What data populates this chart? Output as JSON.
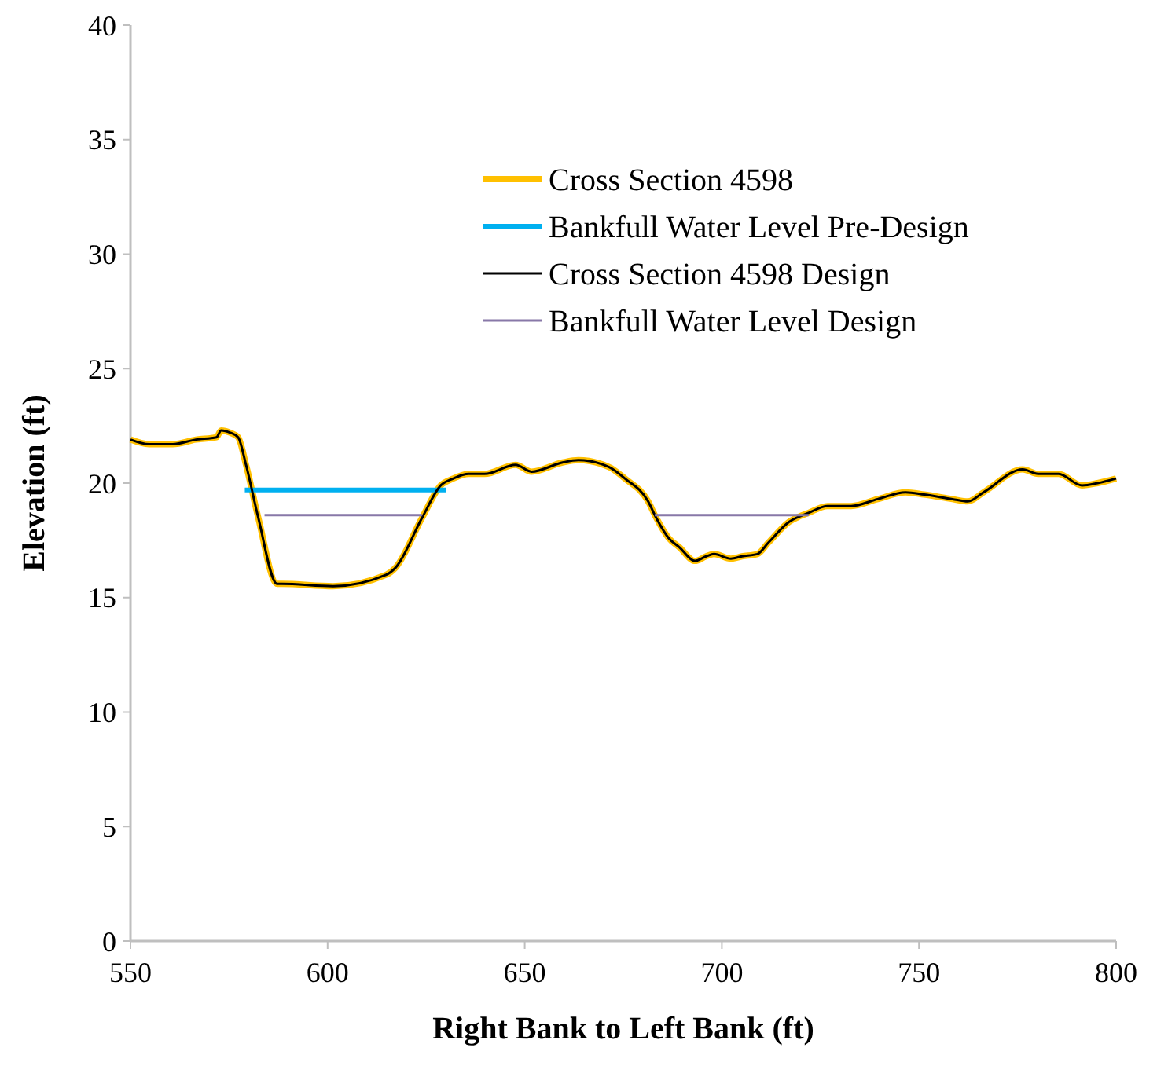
{
  "chart_data": {
    "type": "line",
    "xlabel": "Right Bank to Left Bank (ft)",
    "ylabel": "Elevation (ft)",
    "xlim": [
      550,
      800
    ],
    "xticks": [
      550,
      600,
      650,
      700,
      750,
      800
    ],
    "ylim": [
      0,
      40
    ],
    "yticks": [
      0,
      5,
      10,
      15,
      20,
      25,
      30,
      35,
      40
    ],
    "grid": false,
    "legend": "top right",
    "marker": "none",
    "line_style": "solid",
    "series": [
      {
        "name": "Cross Section 4598",
        "color": "#ffc000",
        "x": [
          550,
          554.7,
          560.7,
          566.6,
          571.8,
          573,
          575.3,
          577.3,
          579.3,
          582.4,
          587.2,
          588.4,
          601.4,
          614.9,
          617.2,
          624,
          628.7,
          631.9,
          635.8,
          639.8,
          647.7,
          651.7,
          659.6,
          663.6,
          671.4,
          675.4,
          681.3,
          683.3,
          686.5,
          689.2,
          693.2,
          696,
          698,
          702.3,
          705.1,
          709,
          711.8,
          717,
          722,
          726.8,
          732.8,
          739.5,
          746.6,
          751.3,
          758.5,
          762.4,
          766.4,
          776.3,
          780.2,
          785.4,
          791.3,
          795.3,
          800
        ],
        "values": [
          21.9,
          21.7,
          21.7,
          21.9,
          22.0,
          22.3,
          22.2,
          22.0,
          20.8,
          18.5,
          15.6,
          15.6,
          15.5,
          16.0,
          16.3,
          18.5,
          19.9,
          20.2,
          20.4,
          20.4,
          20.8,
          20.5,
          20.9,
          21.0,
          20.7,
          20.2,
          19.2,
          18.5,
          17.6,
          17.2,
          16.6,
          16.8,
          16.9,
          16.7,
          16.8,
          16.9,
          17.4,
          18.3,
          18.7,
          19.0,
          19.0,
          19.3,
          19.6,
          19.5,
          19.3,
          19.2,
          19.6,
          20.6,
          20.4,
          20.4,
          19.9,
          20.0,
          20.2
        ]
      },
      {
        "name": "Bankfull Water Level Pre-Design",
        "color": "#00b0f0",
        "x": [
          579,
          630
        ],
        "values": [
          19.7,
          19.7
        ]
      },
      {
        "name": "Cross Section 4598 Design",
        "color": "#000000",
        "x": [
          550,
          554.7,
          560.7,
          566.6,
          571.8,
          573,
          575.3,
          577.3,
          579.3,
          582.4,
          587.2,
          588.4,
          601.4,
          614.9,
          617.2,
          624,
          628.7,
          631.9,
          635.8,
          639.8,
          647.7,
          651.7,
          659.6,
          663.6,
          671.4,
          675.4,
          681.3,
          683.3,
          686.5,
          689.2,
          693.2,
          696,
          698,
          702.3,
          705.1,
          709,
          711.8,
          717,
          722,
          726.8,
          732.8,
          739.5,
          746.6,
          751.3,
          758.5,
          762.4,
          766.4,
          776.3,
          780.2,
          785.4,
          791.3,
          795.3,
          800
        ],
        "values": [
          21.9,
          21.7,
          21.7,
          21.9,
          22.0,
          22.3,
          22.2,
          22.0,
          20.8,
          18.5,
          15.6,
          15.6,
          15.5,
          16.0,
          16.3,
          18.5,
          19.9,
          20.2,
          20.4,
          20.4,
          20.8,
          20.5,
          20.9,
          21.0,
          20.7,
          20.2,
          19.2,
          18.5,
          17.6,
          17.2,
          16.6,
          16.8,
          16.9,
          16.7,
          16.8,
          16.9,
          17.4,
          18.3,
          18.7,
          19.0,
          19.0,
          19.3,
          19.6,
          19.5,
          19.3,
          19.2,
          19.6,
          20.6,
          20.4,
          20.4,
          19.9,
          20.0,
          20.2
        ]
      },
      {
        "name": "Bankfull Water Level Design",
        "color": "#8878a8",
        "x": [
          584,
          624,
          654,
          683,
          722
        ],
        "values": [
          18.6,
          18.6,
          null,
          18.6,
          18.6
        ]
      }
    ]
  }
}
